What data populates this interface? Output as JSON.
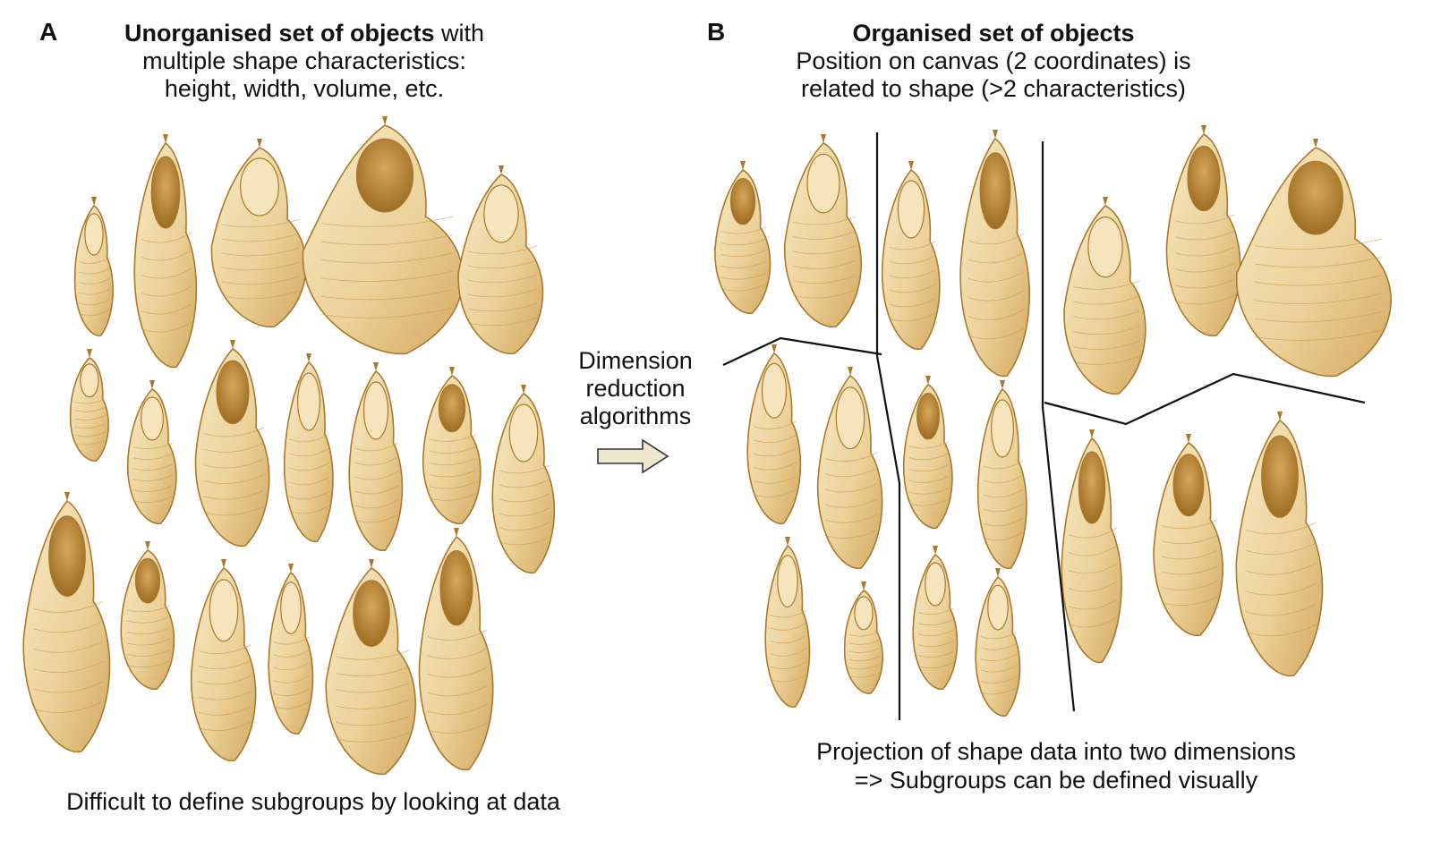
{
  "panel_a": {
    "letter": "A",
    "title_bold": "Unorganised set of objects",
    "title_rest": " with",
    "subtitle_line1": "multiple shape characteristics:",
    "subtitle_line2": "height, width, volume, etc.",
    "caption": "Difficult to define subgroups by looking at data"
  },
  "panel_b": {
    "letter": "B",
    "title_bold": "Organised set of objects",
    "subtitle_line1": "Position on canvas (2 coordinates) is",
    "subtitle_line2": "related to shape (>2 characteristics)",
    "caption_line1": "Projection of shape data into two dimensions",
    "caption_line2": "=> Subgroups can be defined visually"
  },
  "middle": {
    "line1": "Dimension",
    "line2": "reduction",
    "line3": "algorithms",
    "arrow_icon": "right-arrow-icon"
  },
  "colors": {
    "seed_fill": "#f1dcaa",
    "seed_stroke": "#a97a2c",
    "seed_shade": "#c99a4a",
    "divider": "#111111",
    "arrow_fill": "#efe6cf"
  }
}
